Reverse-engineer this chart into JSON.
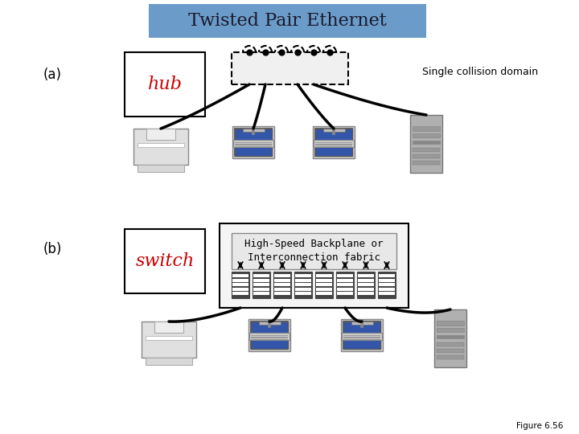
{
  "title": "Twisted Pair Ethernet",
  "title_bg": "#6b9bc8",
  "title_color": "#1a1a2e",
  "label_a": "(a)",
  "label_b": "(b)",
  "hub_text": "hub",
  "switch_text": "switch",
  "single_collision_text": "Single collision domain",
  "highspeed_text": "High-Speed Backplane or\nInterconnection fabric",
  "figure_label": "Figure 6.56",
  "hub_color": "#cc0000",
  "switch_color": "#cc0000",
  "bg_color": "white",
  "line_color": "black",
  "monitor_color": "#3355aa",
  "tower_color": "#aaaaaa",
  "printer_color": "#dddddd"
}
